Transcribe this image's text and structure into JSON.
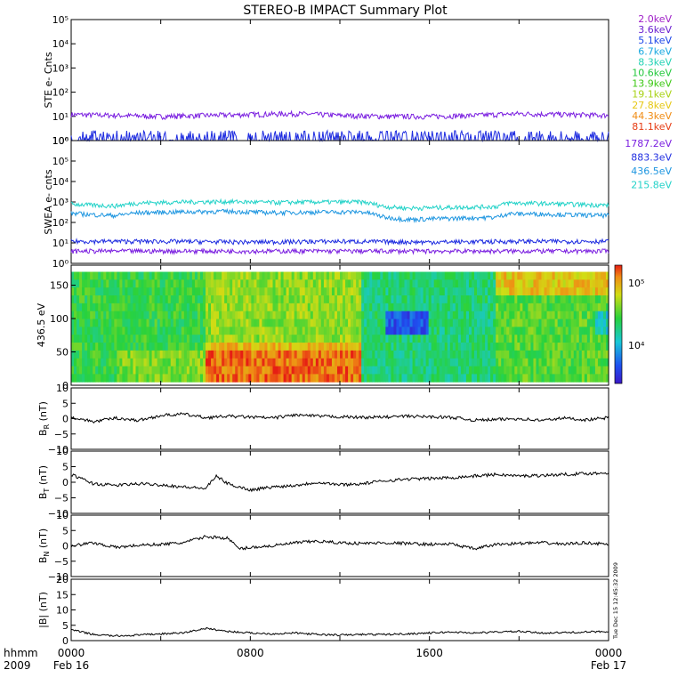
{
  "title": "STEREO-B IMPACT Summary Plot",
  "stamp": "Tue Dec 15 12:45:32 2009",
  "time_axis": {
    "row1_label": "hhmm",
    "row2_label": "2009",
    "ticks": [
      {
        "t": 0,
        "label": "0000",
        "date": "Feb 16"
      },
      {
        "t": 8,
        "label": "0800",
        "date": ""
      },
      {
        "t": 16,
        "label": "1600",
        "date": ""
      },
      {
        "t": 24,
        "label": "0000",
        "date": "Feb 17"
      }
    ]
  },
  "legend_ste": [
    {
      "label": "2.0keV",
      "color": "#a020c8"
    },
    {
      "label": "3.6keV",
      "color": "#6a1fd0"
    },
    {
      "label": "5.1keV",
      "color": "#1e46e8"
    },
    {
      "label": "6.7keV",
      "color": "#18a8e0"
    },
    {
      "label": "8.3keV",
      "color": "#22d2b4"
    },
    {
      "label": "10.6keV",
      "color": "#22c83c"
    },
    {
      "label": "13.9keV",
      "color": "#3cc814"
    },
    {
      "label": "19.1keV",
      "color": "#a8d214"
    },
    {
      "label": "27.8keV",
      "color": "#e6c814"
    },
    {
      "label": "44.3keV",
      "color": "#f08c14"
    },
    {
      "label": "81.1keV",
      "color": "#e63c14"
    }
  ],
  "legend_swea": [
    {
      "label": "1787.2eV",
      "color": "#7a1ee0"
    },
    {
      "label": "883.3eV",
      "color": "#1e2ce0"
    },
    {
      "label": "436.5eV",
      "color": "#1e96e0"
    },
    {
      "label": "215.8eV",
      "color": "#22d2c8"
    }
  ],
  "chart_data": [
    {
      "type": "line",
      "panel": "ste",
      "ylabel": "STE e- Cnts",
      "yscale": "log",
      "ylim": [
        1,
        100000
      ],
      "yticks": [
        "10⁰",
        "10¹",
        "10²",
        "10³",
        "10⁴",
        "10⁵"
      ],
      "xlim_hours": [
        0,
        24
      ],
      "series": [
        {
          "name": "2.0keV",
          "color": "#7a1ee0",
          "x": [
            0,
            2,
            4,
            6,
            8,
            10,
            12,
            14,
            16,
            18,
            20,
            22,
            24
          ],
          "y": [
            12,
            11,
            10,
            11,
            12,
            13,
            11,
            10,
            10,
            11,
            13,
            12,
            11
          ]
        },
        {
          "name": "3.6keV",
          "color": "#1e2ce0",
          "x": [
            0,
            2,
            4,
            6,
            8,
            10,
            12,
            14,
            16,
            18,
            20,
            22,
            24
          ],
          "y": [
            1,
            1,
            1,
            1,
            1,
            1,
            1,
            1,
            1,
            1,
            1,
            1,
            1
          ]
        }
      ]
    },
    {
      "type": "line",
      "panel": "swea",
      "ylabel": "SWEA e- cnts",
      "yscale": "log",
      "ylim": [
        1,
        1000000
      ],
      "yticks": [
        "10⁰",
        "10¹",
        "10²",
        "10³",
        "10⁴",
        "10⁵",
        "10⁶"
      ],
      "xlim_hours": [
        0,
        24
      ],
      "series": [
        {
          "name": "215.8eV",
          "color": "#22d2c8",
          "x": [
            0,
            1,
            2,
            3,
            5,
            7,
            9,
            11,
            13,
            14,
            15,
            17,
            19,
            19.5,
            21,
            23,
            24
          ],
          "y": [
            800,
            700,
            650,
            900,
            1000,
            1050,
            950,
            1000,
            1000,
            600,
            500,
            550,
            600,
            900,
            850,
            750,
            700
          ]
        },
        {
          "name": "436.5eV",
          "color": "#1e96e0",
          "x": [
            0,
            1,
            2,
            3,
            5,
            7,
            9,
            11,
            13,
            14,
            15,
            17,
            19,
            19.5,
            21,
            23,
            24
          ],
          "y": [
            280,
            240,
            220,
            300,
            330,
            350,
            300,
            320,
            330,
            180,
            140,
            160,
            180,
            270,
            260,
            230,
            220
          ]
        },
        {
          "name": "883.3eV",
          "color": "#1e2ce0",
          "x": [
            0,
            4,
            8,
            12,
            16,
            20,
            24
          ],
          "y": [
            12,
            12,
            11,
            12,
            11,
            12,
            12
          ]
        },
        {
          "name": "1787.2eV",
          "color": "#7a1ee0",
          "x": [
            0,
            4,
            8,
            12,
            16,
            20,
            24
          ],
          "y": [
            4,
            4,
            4,
            4,
            4,
            4,
            4
          ]
        }
      ]
    },
    {
      "type": "heatmap",
      "panel": "pad",
      "ylabel": "436.5 eV",
      "ylim": [
        0,
        180
      ],
      "yticks": [
        0,
        50,
        100,
        150
      ],
      "xlim_hours": [
        0,
        24
      ],
      "colorbar": {
        "ticks": [
          "10⁴",
          "10⁵"
        ]
      }
    },
    {
      "type": "line",
      "panel": "br",
      "ylabel_main": "B",
      "ylabel_sub": "R",
      "ylabel_unit": " (nT)",
      "ylim": [
        -10,
        10
      ],
      "yticks": [
        -10,
        -5,
        0,
        5,
        10
      ],
      "series": [
        {
          "x": [
            0,
            1,
            2,
            3,
            4,
            5,
            6,
            7,
            8,
            9,
            10,
            11,
            12,
            13,
            14,
            15,
            16,
            17,
            18,
            19,
            20,
            21,
            22,
            23,
            24
          ],
          "y": [
            0.5,
            -1,
            0.2,
            -0.6,
            1,
            1.5,
            0.3,
            0.8,
            0.5,
            0.2,
            1.2,
            0.8,
            0.6,
            0.4,
            0.5,
            0.8,
            0.6,
            0.4,
            -0.5,
            -0.3,
            0,
            -0.6,
            0.2,
            -0.4,
            0.3
          ]
        }
      ]
    },
    {
      "type": "line",
      "panel": "bt",
      "ylabel_main": "B",
      "ylabel_sub": "T",
      "ylabel_unit": " (nT)",
      "ylim": [
        -10,
        10
      ],
      "yticks": [
        -10,
        -5,
        0,
        5,
        10
      ],
      "series": [
        {
          "x": [
            0,
            1,
            2,
            3,
            4,
            5,
            6,
            6.5,
            7,
            8,
            9,
            10,
            11,
            12,
            13,
            14,
            15,
            16,
            17,
            18,
            19,
            20,
            21,
            22,
            23,
            24
          ],
          "y": [
            2.5,
            -0.5,
            -1,
            -0.5,
            -0.8,
            -1.5,
            -2,
            2,
            -0.5,
            -2.5,
            -1.5,
            -1,
            0,
            -0.8,
            -0.5,
            0.5,
            1,
            1.2,
            1.5,
            2,
            2.5,
            2,
            2.2,
            2.5,
            2.8,
            3
          ]
        }
      ]
    },
    {
      "type": "line",
      "panel": "bn",
      "ylabel_main": "B",
      "ylabel_sub": "N",
      "ylabel_unit": " (nT)",
      "ylim": [
        -10,
        10
      ],
      "yticks": [
        -10,
        -5,
        0,
        5,
        10
      ],
      "series": [
        {
          "x": [
            0,
            1,
            2,
            3,
            4,
            5,
            6,
            7,
            7.5,
            8,
            9,
            10,
            11,
            12,
            13,
            14,
            15,
            16,
            17,
            18,
            19,
            20,
            21,
            22,
            23,
            24
          ],
          "y": [
            0,
            1,
            -0.5,
            0.2,
            0.5,
            1,
            3,
            2.5,
            -1,
            -0.5,
            0,
            1,
            1.5,
            1,
            0.8,
            1,
            0.8,
            0.5,
            0.6,
            -1,
            0.5,
            0.8,
            1,
            0.6,
            1,
            0.5
          ]
        }
      ]
    },
    {
      "type": "line",
      "panel": "bmag",
      "ylabel_main": "|B|",
      "ylabel_sub": "",
      "ylabel_unit": " (nT)",
      "ylim": [
        0,
        20
      ],
      "yticks": [
        0,
        5,
        10,
        15,
        20
      ],
      "series": [
        {
          "x": [
            0,
            1,
            2,
            3,
            4,
            5,
            6,
            7,
            8,
            9,
            10,
            11,
            12,
            13,
            14,
            15,
            16,
            17,
            18,
            19,
            20,
            21,
            22,
            23,
            24
          ],
          "y": [
            3.5,
            2,
            1.5,
            1.8,
            2.2,
            2.5,
            4,
            3,
            2.5,
            2.2,
            2.5,
            2,
            1.8,
            2,
            2,
            2.2,
            2.5,
            2.8,
            2.5,
            2.8,
            3,
            2.5,
            2.6,
            2.8,
            3
          ]
        }
      ]
    }
  ]
}
